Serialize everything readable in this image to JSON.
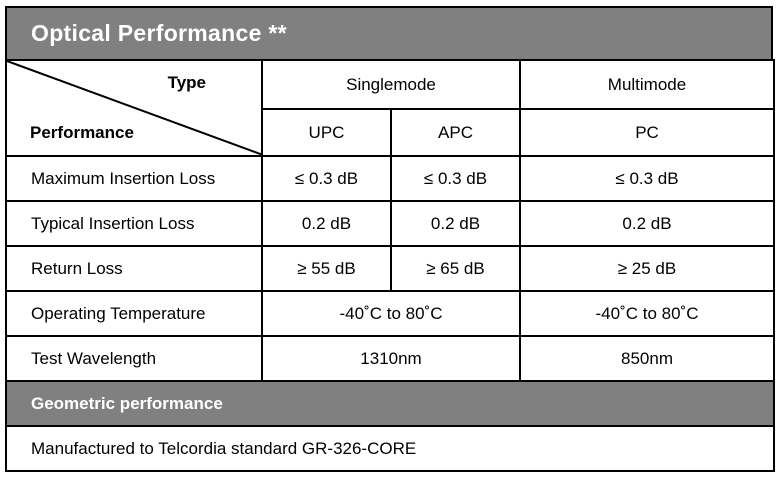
{
  "title": "Optical  Performance  **",
  "header": {
    "type_label": "Type",
    "performance_label": "Performance",
    "singlemode": "Singlemode",
    "multimode": "Multimode",
    "upc": "UPC",
    "apc": "APC",
    "pc": "PC"
  },
  "rows": [
    {
      "label": "Maximum Insertion Loss",
      "upc": "≤ 0.3 dB",
      "apc": "≤ 0.3 dB",
      "pc": "≤ 0.3 dB"
    },
    {
      "label": "Typical Insertion Loss",
      "upc": "0.2 dB",
      "apc": "0.2 dB",
      "pc": "0.2 dB"
    },
    {
      "label": "Return Loss",
      "upc": "≥ 55 dB",
      "apc": "≥ 65 dB",
      "pc": "≥ 25 dB"
    },
    {
      "label": "Operating Temperature",
      "singlemode": "-40˚C to 80˚C",
      "pc": "-40˚C to 80˚C"
    },
    {
      "label": "Test Wavelength",
      "singlemode": "1310nm",
      "pc": "850nm"
    }
  ],
  "geometric": {
    "heading": "Geometric performance",
    "text": "Manufactured to Telcordia standard GR-326-CORE"
  }
}
